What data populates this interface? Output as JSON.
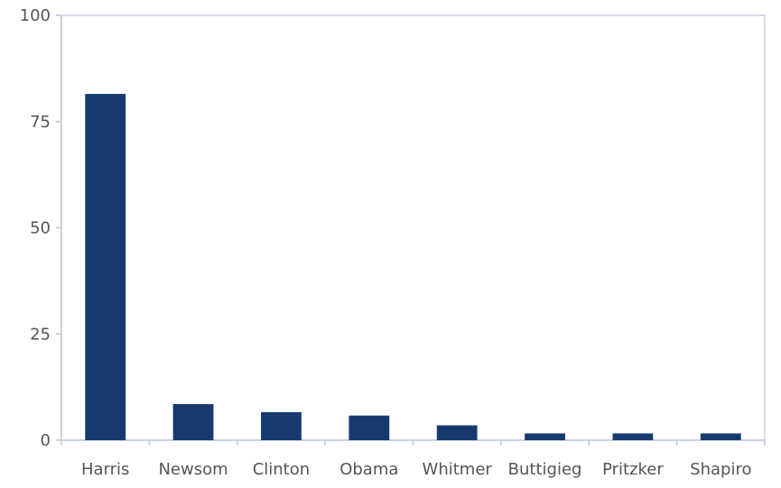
{
  "chart_data": {
    "type": "bar",
    "title": "",
    "xlabel": "",
    "ylabel": "",
    "categories": [
      "Harris",
      "Newsom",
      "Clinton",
      "Obama",
      "Whitmer",
      "Buttigieg",
      "Pritzker",
      "Shapiro"
    ],
    "values": [
      81.5,
      8.5,
      6.6,
      5.8,
      3.5,
      1.6,
      1.6,
      1.6
    ],
    "ylim": [
      0,
      100
    ],
    "yticks": [
      0,
      25,
      50,
      75,
      100
    ],
    "ytick_labels": [
      "0",
      "25",
      "50",
      "75",
      "100"
    ],
    "grid": false,
    "legend": "none",
    "colors": {
      "bar": "#173a6e",
      "axis": "#c8d2df",
      "frame": "#c8d2df",
      "text": "#555555"
    }
  }
}
